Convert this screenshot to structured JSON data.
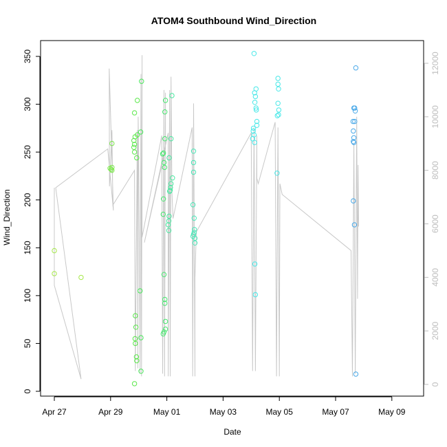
{
  "chart_data": {
    "type": "scatter",
    "title": "ATOM4 Southbound Wind_Direction",
    "xlabel": "Date",
    "ylabel": "Wind_Direction",
    "x_ticks": [
      "Apr 27",
      "Apr 29",
      "May 01",
      "May 03",
      "May 05",
      "May 07",
      "May 09"
    ],
    "ylim": [
      0,
      360
    ],
    "y_ticks": [
      0,
      50,
      100,
      150,
      200,
      250,
      300,
      350
    ],
    "y2_ticks": [
      0,
      2000,
      4000,
      6000,
      8000,
      10000,
      12000
    ],
    "y2lim": [
      0,
      12500
    ],
    "colors": {
      "axis": "#000000",
      "axis2": "#bdbdbd",
      "line": "#c8c8c8"
    },
    "scatter": [
      {
        "x": 0.0,
        "y": 147,
        "color": "#a6e84a"
      },
      {
        "x": 0.0,
        "y": 123,
        "color": "#a6e84a"
      },
      {
        "x": 0.95,
        "y": 119,
        "color": "#a6e84a"
      },
      {
        "x": 2.05,
        "y": 259,
        "color": "#7be84a"
      },
      {
        "x": 2.05,
        "y": 234,
        "color": "#7be84a"
      },
      {
        "x": 2.05,
        "y": 231,
        "color": "#7be84a"
      },
      {
        "x": 1.98,
        "y": 233,
        "color": "#7be84a"
      },
      {
        "x": 2.02,
        "y": 232,
        "color": "#7be84a"
      },
      {
        "x": 2.85,
        "y": 291,
        "color": "#5ae84a"
      },
      {
        "x": 2.83,
        "y": 262,
        "color": "#5ae84a"
      },
      {
        "x": 2.85,
        "y": 258,
        "color": "#5ae84a"
      },
      {
        "x": 2.83,
        "y": 255,
        "color": "#5ae84a"
      },
      {
        "x": 2.85,
        "y": 250,
        "color": "#5ae84a"
      },
      {
        "x": 2.87,
        "y": 266,
        "color": "#5ae84a"
      },
      {
        "x": 2.88,
        "y": 79,
        "color": "#5ae84a"
      },
      {
        "x": 2.9,
        "y": 67,
        "color": "#5ae84a"
      },
      {
        "x": 2.87,
        "y": 55,
        "color": "#5ae84a"
      },
      {
        "x": 2.88,
        "y": 50,
        "color": "#5ae84a"
      },
      {
        "x": 2.92,
        "y": 36,
        "color": "#5ae84a"
      },
      {
        "x": 2.93,
        "y": 32,
        "color": "#5ae84a"
      },
      {
        "x": 2.85,
        "y": 8,
        "color": "#5ae84a"
      },
      {
        "x": 2.95,
        "y": 304,
        "color": "#5ae84a"
      },
      {
        "x": 2.95,
        "y": 268,
        "color": "#5ae84a"
      },
      {
        "x": 2.93,
        "y": 244,
        "color": "#5ae84a"
      },
      {
        "x": 3.1,
        "y": 324,
        "color": "#48e85a"
      },
      {
        "x": 3.07,
        "y": 271,
        "color": "#48e85a"
      },
      {
        "x": 3.05,
        "y": 105,
        "color": "#48e85a"
      },
      {
        "x": 3.08,
        "y": 56,
        "color": "#48e85a"
      },
      {
        "x": 3.08,
        "y": 21,
        "color": "#48e85a"
      },
      {
        "x": 3.95,
        "y": 304,
        "color": "#48e870"
      },
      {
        "x": 3.93,
        "y": 292,
        "color": "#48e870"
      },
      {
        "x": 3.93,
        "y": 264,
        "color": "#48e870"
      },
      {
        "x": 3.85,
        "y": 248,
        "color": "#48e870"
      },
      {
        "x": 3.88,
        "y": 249,
        "color": "#48e870"
      },
      {
        "x": 3.9,
        "y": 239,
        "color": "#48e870"
      },
      {
        "x": 3.92,
        "y": 234,
        "color": "#48e870"
      },
      {
        "x": 3.88,
        "y": 201,
        "color": "#48e870"
      },
      {
        "x": 3.87,
        "y": 185,
        "color": "#48e870"
      },
      {
        "x": 3.9,
        "y": 122,
        "color": "#48e870"
      },
      {
        "x": 3.93,
        "y": 96,
        "color": "#48e870"
      },
      {
        "x": 3.93,
        "y": 92,
        "color": "#48e870"
      },
      {
        "x": 3.95,
        "y": 73,
        "color": "#48e870"
      },
      {
        "x": 3.95,
        "y": 65,
        "color": "#48e870"
      },
      {
        "x": 3.9,
        "y": 62,
        "color": "#48e870"
      },
      {
        "x": 3.87,
        "y": 60,
        "color": "#48e870"
      },
      {
        "x": 4.18,
        "y": 309,
        "color": "#48e8a0"
      },
      {
        "x": 4.15,
        "y": 264,
        "color": "#48e8a0"
      },
      {
        "x": 4.08,
        "y": 244,
        "color": "#48e8a0"
      },
      {
        "x": 4.2,
        "y": 223,
        "color": "#48e8a0"
      },
      {
        "x": 4.15,
        "y": 217,
        "color": "#48e8a0"
      },
      {
        "x": 4.13,
        "y": 213,
        "color": "#48e8a0"
      },
      {
        "x": 4.12,
        "y": 210,
        "color": "#48e8a0"
      },
      {
        "x": 4.1,
        "y": 209,
        "color": "#48e8a0"
      },
      {
        "x": 4.08,
        "y": 183,
        "color": "#48e8a0"
      },
      {
        "x": 4.07,
        "y": 178,
        "color": "#48e8a0"
      },
      {
        "x": 4.05,
        "y": 174,
        "color": "#48e8a0"
      },
      {
        "x": 4.07,
        "y": 168,
        "color": "#48e8a0"
      },
      {
        "x": 4.95,
        "y": 251,
        "color": "#48e8b8"
      },
      {
        "x": 4.95,
        "y": 239,
        "color": "#48e8b8"
      },
      {
        "x": 4.95,
        "y": 229,
        "color": "#48e8b8"
      },
      {
        "x": 4.93,
        "y": 195,
        "color": "#48e8b8"
      },
      {
        "x": 4.97,
        "y": 181,
        "color": "#48e8b8"
      },
      {
        "x": 4.98,
        "y": 169,
        "color": "#48e8b8"
      },
      {
        "x": 4.97,
        "y": 166,
        "color": "#48e8b8"
      },
      {
        "x": 4.95,
        "y": 164,
        "color": "#48e8b8"
      },
      {
        "x": 4.93,
        "y": 162,
        "color": "#48e8b8"
      },
      {
        "x": 5.0,
        "y": 160,
        "color": "#48e8b8"
      },
      {
        "x": 5.0,
        "y": 155,
        "color": "#48e8b8"
      },
      {
        "x": 7.1,
        "y": 353,
        "color": "#48e8e8"
      },
      {
        "x": 7.17,
        "y": 316,
        "color": "#48e8e8"
      },
      {
        "x": 7.12,
        "y": 312,
        "color": "#48e8e8"
      },
      {
        "x": 7.15,
        "y": 308,
        "color": "#48e8e8"
      },
      {
        "x": 7.13,
        "y": 302,
        "color": "#48e8e8"
      },
      {
        "x": 7.17,
        "y": 296,
        "color": "#48e8e8"
      },
      {
        "x": 7.18,
        "y": 294,
        "color": "#48e8e8"
      },
      {
        "x": 7.2,
        "y": 282,
        "color": "#48e8e8"
      },
      {
        "x": 7.2,
        "y": 278,
        "color": "#48e8e8"
      },
      {
        "x": 7.08,
        "y": 275,
        "color": "#48e8e8"
      },
      {
        "x": 7.07,
        "y": 272,
        "color": "#48e8e8"
      },
      {
        "x": 7.1,
        "y": 268,
        "color": "#48e8e8"
      },
      {
        "x": 7.05,
        "y": 264,
        "color": "#48e8e8"
      },
      {
        "x": 7.12,
        "y": 260,
        "color": "#48e8e8"
      },
      {
        "x": 7.13,
        "y": 133,
        "color": "#48e8e8"
      },
      {
        "x": 7.15,
        "y": 101,
        "color": "#48e8e8"
      },
      {
        "x": 7.95,
        "y": 327,
        "color": "#48e8e8"
      },
      {
        "x": 7.95,
        "y": 321,
        "color": "#48e8e8"
      },
      {
        "x": 7.97,
        "y": 316,
        "color": "#48e8e8"
      },
      {
        "x": 7.95,
        "y": 301,
        "color": "#48e8e8"
      },
      {
        "x": 7.98,
        "y": 294,
        "color": "#48e8e8"
      },
      {
        "x": 7.97,
        "y": 289,
        "color": "#48e8e8"
      },
      {
        "x": 7.93,
        "y": 288,
        "color": "#48e8e8"
      },
      {
        "x": 7.92,
        "y": 228,
        "color": "#48e8e8"
      },
      {
        "x": 10.72,
        "y": 338,
        "color": "#48a8e8"
      },
      {
        "x": 10.68,
        "y": 296,
        "color": "#48a8e8"
      },
      {
        "x": 10.65,
        "y": 296,
        "color": "#48a8e8"
      },
      {
        "x": 10.7,
        "y": 293,
        "color": "#48a8e8"
      },
      {
        "x": 10.62,
        "y": 282,
        "color": "#48a8e8"
      },
      {
        "x": 10.68,
        "y": 282,
        "color": "#48a8e8"
      },
      {
        "x": 10.63,
        "y": 272,
        "color": "#48a8e8"
      },
      {
        "x": 10.65,
        "y": 265,
        "color": "#48a8e8"
      },
      {
        "x": 10.63,
        "y": 261,
        "color": "#48a8e8"
      },
      {
        "x": 10.65,
        "y": 260,
        "color": "#48a8e8"
      },
      {
        "x": 10.63,
        "y": 199,
        "color": "#48a8e8"
      },
      {
        "x": 10.67,
        "y": 174,
        "color": "#48a8e8"
      },
      {
        "x": 10.72,
        "y": 18,
        "color": "#48a8e8"
      }
    ],
    "line_y2": [
      [
        0.0,
        4200
      ],
      [
        0.0,
        7350
      ],
      [
        0.0,
        3700
      ],
      [
        0.95,
        200
      ],
      [
        0.05,
        7350
      ],
      [
        1.9,
        8800
      ],
      [
        2.1,
        6500
      ],
      [
        1.95,
        11800
      ],
      [
        1.96,
        7400
      ],
      [
        2.05,
        9500
      ],
      [
        2.08,
        6700
      ],
      [
        2.85,
        8000
      ],
      [
        2.88,
        500
      ],
      [
        2.9,
        3000
      ],
      [
        2.95,
        9500
      ],
      [
        2.97,
        600
      ],
      [
        2.98,
        10000
      ],
      [
        3.0,
        8500
      ],
      [
        3.05,
        400
      ],
      [
        3.08,
        11600
      ],
      [
        3.1,
        300
      ],
      [
        3.12,
        12300
      ],
      [
        3.12,
        5500
      ],
      [
        3.82,
        9300
      ],
      [
        3.85,
        400
      ],
      [
        3.9,
        11000
      ],
      [
        3.92,
        300
      ],
      [
        3.95,
        10900
      ],
      [
        3.95,
        8800
      ],
      [
        3.2,
        5300
      ],
      [
        4.05,
        9400
      ],
      [
        4.05,
        300
      ],
      [
        4.1,
        11000
      ],
      [
        4.12,
        300
      ],
      [
        4.15,
        11500
      ],
      [
        4.18,
        7200
      ],
      [
        4.22,
        6200
      ],
      [
        4.9,
        9600
      ],
      [
        4.92,
        300
      ],
      [
        4.95,
        10500
      ],
      [
        5.0,
        300
      ],
      [
        5.0,
        4000
      ],
      [
        5.05,
        5700
      ],
      [
        7.0,
        9400
      ],
      [
        7.05,
        500
      ],
      [
        7.1,
        9600
      ],
      [
        7.15,
        500
      ],
      [
        7.2,
        9300
      ],
      [
        7.2,
        7700
      ],
      [
        7.25,
        7500
      ],
      [
        7.85,
        9800
      ],
      [
        7.9,
        300
      ],
      [
        7.95,
        9600
      ],
      [
        8.0,
        300
      ],
      [
        8.02,
        7500
      ],
      [
        8.1,
        7100
      ],
      [
        10.55,
        5000
      ],
      [
        10.6,
        300
      ],
      [
        10.65,
        9000
      ],
      [
        10.7,
        400
      ],
      [
        10.75,
        10000
      ],
      [
        10.78,
        3200
      ],
      [
        10.8,
        8200
      ],
      [
        10.82,
        5900
      ]
    ]
  }
}
